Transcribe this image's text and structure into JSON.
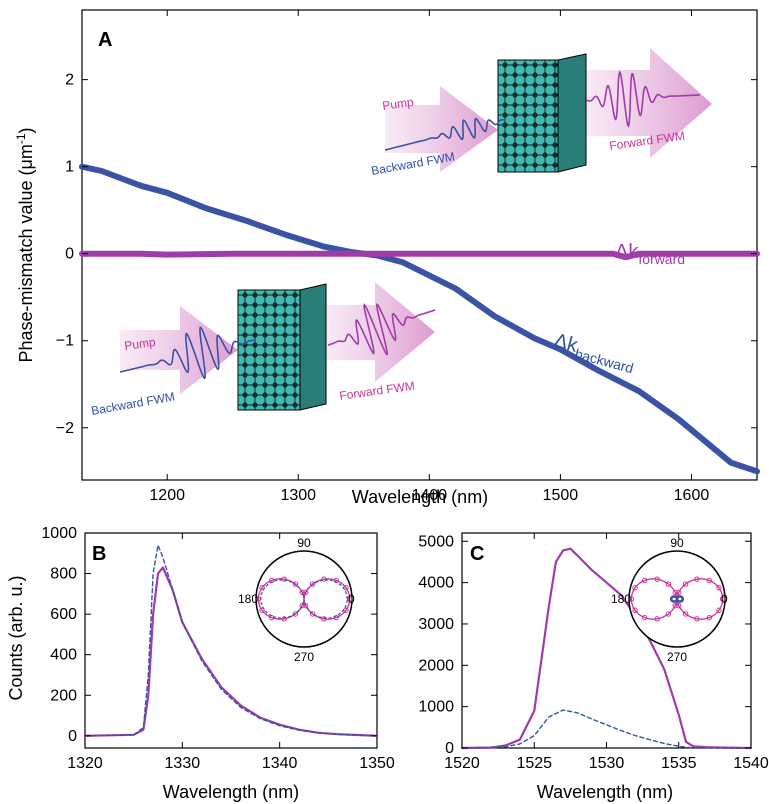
{
  "colors": {
    "blue": "#3a53a4",
    "magenta": "#a03ca8",
    "pink_text": "#cc3399",
    "dark_blue_text": "#2f4fa0",
    "arrow_fill": "#e7bde0"
  },
  "chart_data": [
    {
      "type": "line",
      "panel": "A",
      "xlabel": "Wavelength (nm)",
      "ylabel": "Phase-mismatch value (μm",
      "ylabel_sup": "-1",
      "ylabel_end": ")",
      "xlim": [
        1135,
        1650
      ],
      "ylim": [
        -2.6,
        2.8
      ],
      "xticks": [
        1200,
        1300,
        1400,
        1500,
        1600
      ],
      "yticks": [
        2,
        1,
        0,
        -1,
        -2
      ],
      "ytick_labels": [
        "2",
        "1",
        "0",
        "−1",
        "−2"
      ],
      "series": [
        {
          "name": "Δk backward",
          "label_main": "Δk",
          "label_sub": "backward",
          "color": "#3a53a4",
          "x": [
            1135,
            1150,
            1180,
            1200,
            1230,
            1260,
            1290,
            1320,
            1340,
            1360,
            1380,
            1400,
            1420,
            1450,
            1480,
            1500,
            1530,
            1560,
            1590,
            1610,
            1630,
            1650
          ],
          "y": [
            1.0,
            0.95,
            0.78,
            0.7,
            0.52,
            0.38,
            0.22,
            0.08,
            0.02,
            -0.02,
            -0.1,
            -0.25,
            -0.4,
            -0.72,
            -0.97,
            -1.1,
            -1.35,
            -1.58,
            -1.9,
            -2.15,
            -2.4,
            -2.5
          ]
        },
        {
          "name": "Δk forward",
          "label_main": "Δk",
          "label_sub": "forward",
          "color": "#a03ca8",
          "x": [
            1135,
            1180,
            1200,
            1250,
            1300,
            1350,
            1400,
            1450,
            1500,
            1540,
            1550,
            1560,
            1600,
            1650
          ],
          "y": [
            0.0,
            0.0,
            -0.01,
            0.0,
            0.0,
            0.0,
            0.0,
            0.0,
            0.0,
            0.0,
            -0.04,
            0.0,
            0.0,
            0.0
          ]
        }
      ],
      "insets": {
        "upper": {
          "pump": "Pump",
          "backward": "Backward FWM",
          "forward": "Forward FWM"
        },
        "lower": {
          "pump": "Pump",
          "backward": "Backward FWM",
          "forward": "Forward FWM"
        }
      }
    },
    {
      "type": "line",
      "panel": "B",
      "xlabel": "Wavelength (nm)",
      "ylabel": "Counts (arb. u.)",
      "xlim": [
        1320,
        1350
      ],
      "ylim": [
        -60,
        1000
      ],
      "xticks": [
        1320,
        1330,
        1340,
        1350
      ],
      "yticks": [
        0,
        200,
        400,
        600,
        800,
        1000
      ],
      "series": [
        {
          "name": "solid",
          "style": "solid",
          "color": "#a03ca8",
          "x": [
            1320,
            1325,
            1326,
            1326.5,
            1327,
            1327.5,
            1328,
            1329,
            1330,
            1332,
            1334,
            1336,
            1338,
            1340,
            1342,
            1344,
            1346,
            1348,
            1350
          ],
          "y": [
            0,
            5,
            30,
            200,
            600,
            800,
            830,
            720,
            560,
            380,
            240,
            150,
            90,
            55,
            30,
            15,
            8,
            4,
            0
          ]
        },
        {
          "name": "dashed",
          "style": "dashed",
          "color": "#3a53a4",
          "x": [
            1320,
            1325,
            1326,
            1326.5,
            1327,
            1327.5,
            1328,
            1329,
            1330,
            1332,
            1334,
            1336,
            1338,
            1340,
            1342,
            1344,
            1346,
            1348,
            1350
          ],
          "y": [
            0,
            5,
            40,
            300,
            800,
            940,
            880,
            720,
            560,
            370,
            230,
            140,
            85,
            50,
            28,
            14,
            7,
            3,
            0
          ]
        }
      ],
      "polar": {
        "label_90": "90",
        "label_180": "180",
        "label_270": "270",
        "label_0": "0"
      }
    },
    {
      "type": "line",
      "panel": "C",
      "xlabel": "Wavelength (nm)",
      "xlim": [
        1520,
        1540
      ],
      "ylim": [
        0,
        5200
      ],
      "xticks": [
        1520,
        1525,
        1530,
        1535,
        1540
      ],
      "yticks": [
        0,
        1000,
        2000,
        3000,
        4000,
        5000
      ],
      "series": [
        {
          "name": "solid",
          "style": "solid",
          "color": "#a03ca8",
          "x": [
            1520,
            1522,
            1523,
            1524,
            1525,
            1526,
            1526.5,
            1527,
            1527.5,
            1528,
            1529,
            1530,
            1531,
            1532,
            1533,
            1534,
            1535,
            1535.5,
            1536,
            1537,
            1538,
            1540
          ],
          "y": [
            0,
            10,
            60,
            200,
            900,
            3400,
            4500,
            4780,
            4820,
            4650,
            4300,
            4000,
            3700,
            3200,
            2600,
            1900,
            800,
            150,
            40,
            20,
            10,
            0
          ]
        },
        {
          "name": "dashed",
          "style": "dashed",
          "color": "#3a53a4",
          "x": [
            1520,
            1523,
            1524,
            1525,
            1526,
            1527,
            1528,
            1529,
            1530,
            1531,
            1532,
            1533,
            1534,
            1535,
            1536,
            1540
          ],
          "y": [
            0,
            30,
            100,
            300,
            750,
            920,
            850,
            700,
            560,
            420,
            300,
            200,
            110,
            40,
            0,
            0
          ]
        }
      ],
      "polar": {
        "label_90": "90",
        "label_180": "180",
        "label_270": "270",
        "label_0": "0"
      }
    }
  ]
}
